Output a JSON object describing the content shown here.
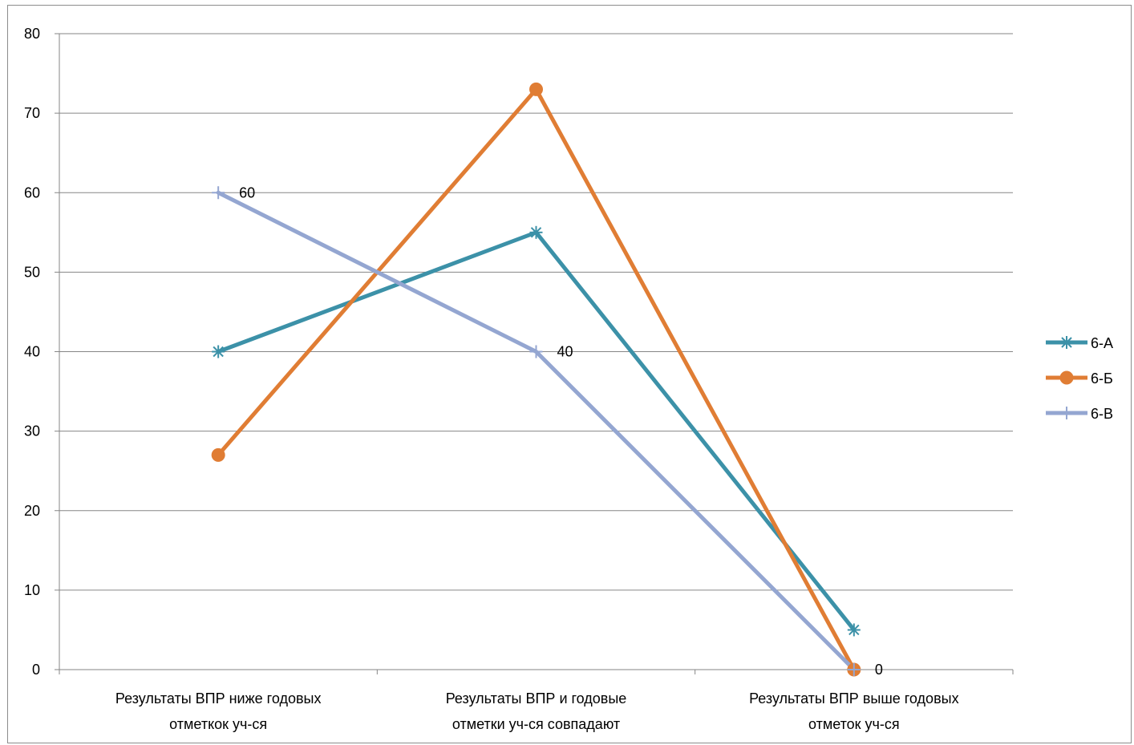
{
  "chart_data": {
    "type": "line",
    "categories": [
      [
        "Результаты  ВПР   ниже  годовых",
        "отметкок уч-ся"
      ],
      [
        "Результаты ВПР и годовые",
        "отметки уч-ся совпадают"
      ],
      [
        "Результаты ВПР  выше годовых",
        "отметок уч-ся"
      ]
    ],
    "ylim": [
      0,
      80
    ],
    "yticks": [
      0,
      10,
      20,
      30,
      40,
      50,
      60,
      70,
      80
    ],
    "grid": true,
    "legend_position": "right",
    "series": [
      {
        "name": "6-А",
        "values": [
          40,
          55,
          5
        ],
        "color": "#3c91a8",
        "marker": "asterisk",
        "labels": [
          null,
          null,
          null
        ]
      },
      {
        "name": "6-Б",
        "values": [
          27,
          73,
          0
        ],
        "color": "#e07d34",
        "marker": "circle",
        "labels": [
          null,
          null,
          null
        ]
      },
      {
        "name": "6-В",
        "values": [
          60,
          40,
          0
        ],
        "color": "#94a6d1",
        "marker": "plus",
        "labels": [
          "60",
          "40",
          "0"
        ]
      }
    ]
  }
}
